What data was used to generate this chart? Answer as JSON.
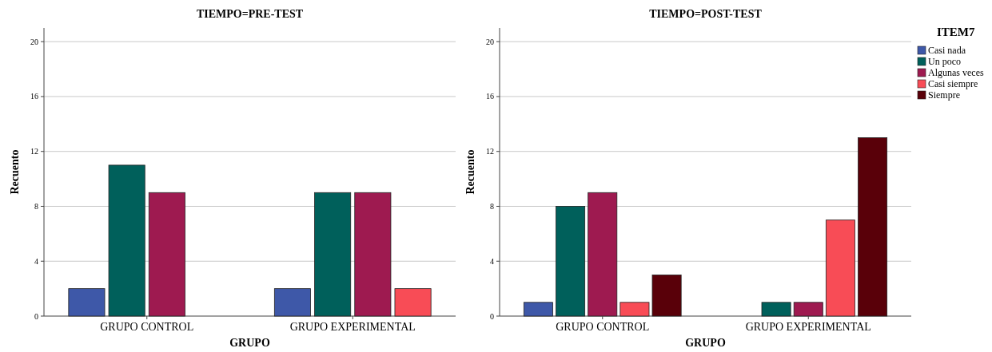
{
  "chart_data": [
    {
      "type": "bar",
      "title": "TIEMPO=PRE-TEST",
      "xlabel": "GRUPO",
      "ylabel": "Recuento",
      "categories": [
        "GRUPO CONTROL",
        "GRUPO EXPERIMENTAL"
      ],
      "series": [
        {
          "color": "#3e58a8",
          "values": [
            2,
            2
          ]
        },
        {
          "color": "#00605b",
          "values": [
            11,
            9
          ]
        },
        {
          "color": "#9e1a50",
          "values": [
            9,
            9
          ]
        },
        {
          "color": "#f84c56",
          "values": [
            null,
            2
          ]
        }
      ],
      "ylim": [
        0,
        21
      ],
      "yticks": [
        0,
        4,
        8,
        12,
        16,
        20
      ],
      "grid": "y",
      "legend": false
    },
    {
      "type": "bar",
      "title": "TIEMPO=POST-TEST",
      "xlabel": "GRUPO",
      "ylabel": "Recuento",
      "legend_title": "ITEM7",
      "categories": [
        "GRUPO CONTROL",
        "GRUPO EXPERIMENTAL"
      ],
      "series": [
        {
          "name": "Casi nada",
          "color": "#3e58a8",
          "values": [
            1,
            null
          ]
        },
        {
          "name": "Un poco",
          "color": "#00605b",
          "values": [
            8,
            1
          ]
        },
        {
          "name": "Algunas veces",
          "color": "#9e1a50",
          "values": [
            9,
            1
          ]
        },
        {
          "name": "Casi siempre",
          "color": "#f84c56",
          "values": [
            1,
            7
          ]
        },
        {
          "name": "Siempre",
          "color": "#590009",
          "values": [
            3,
            13
          ]
        }
      ],
      "ylim": [
        0,
        21
      ],
      "yticks": [
        0,
        4,
        8,
        12,
        16,
        20
      ],
      "grid": "y",
      "legend": "right"
    }
  ]
}
